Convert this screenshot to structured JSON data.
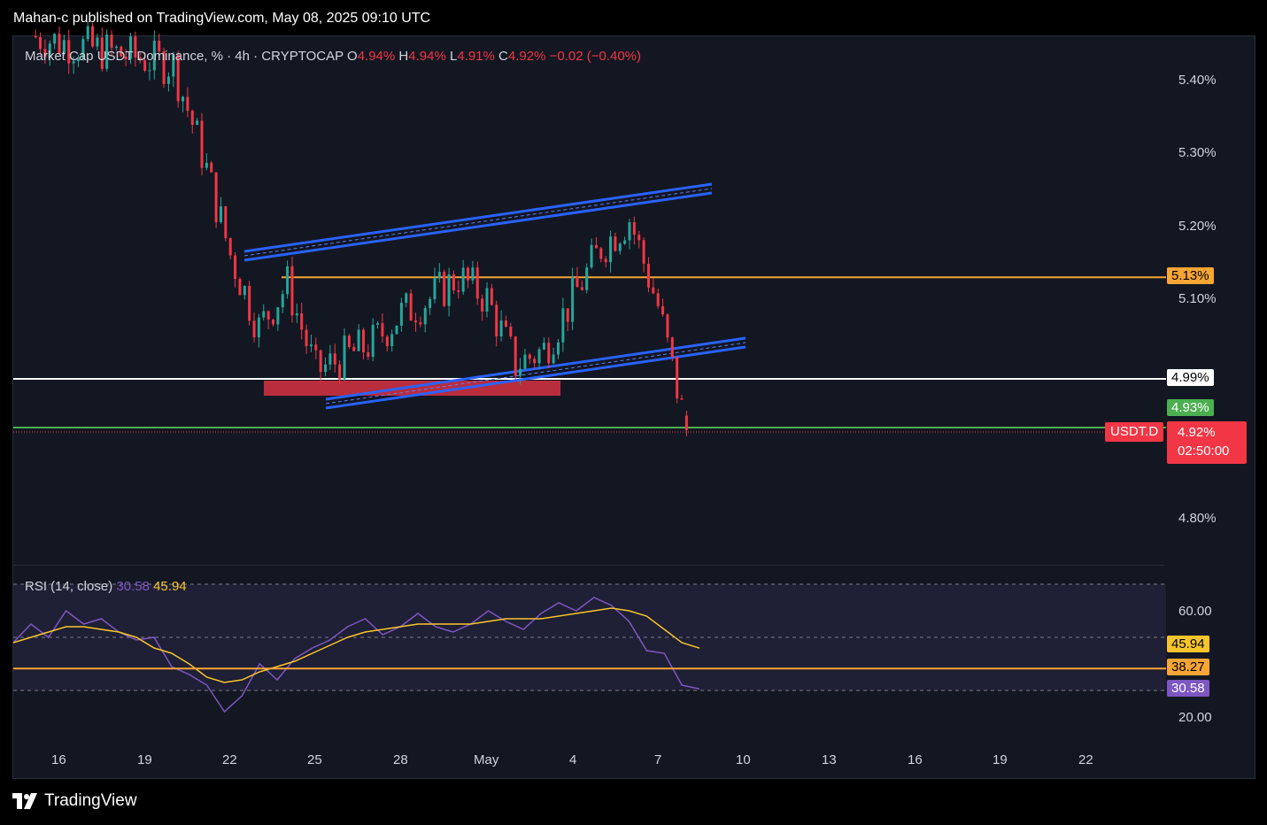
{
  "header": {
    "text": "Mahan-c published on TradingView.com, May 08, 2025 09:10 UTC"
  },
  "footer": {
    "brand": "TradingView"
  },
  "legend": {
    "title": "Market Cap USDT Dominance, % · 4h · CRYPTOCAP",
    "o_label": "O",
    "o_value": "4.94%",
    "h_label": "H",
    "h_value": "4.94%",
    "l_label": "L",
    "l_value": "4.91%",
    "c_label": "C",
    "c_value": "4.92%",
    "change": "−0.02 (−0.40%)"
  },
  "rsi_legend": {
    "label": "RSI (14, close)",
    "rsi_value": "30.58",
    "ma_value": "45.94"
  },
  "price_axis": [
    "5.40%",
    "5.30%",
    "5.20%",
    "5.10%",
    "4.80%"
  ],
  "rsi_axis": [
    "60.00",
    "20.00"
  ],
  "time_axis": [
    "16",
    "19",
    "22",
    "25",
    "28",
    "May",
    "4",
    "7",
    "10",
    "13",
    "16",
    "19",
    "22"
  ],
  "price_badges": {
    "orange": "5.13%",
    "white": "4.99%",
    "green": "4.93%",
    "symbol": "USDT.D",
    "current": "4.92%",
    "countdown": "02:50:00"
  },
  "rsi_badges": {
    "ma": "45.94",
    "level": "38.27",
    "rsi": "30.58"
  },
  "colors": {
    "up": "#26a69a",
    "down": "#f23645",
    "channel": "#2962ff",
    "orange": "#f7a535",
    "rsi": "#7e57c2",
    "rsi_ma": "#f7c52b",
    "green": "#4caf50"
  },
  "chart_data": {
    "type": "candlestick",
    "symbol": "USDT.D",
    "timeframe": "4h",
    "price_range": [
      4.745,
      5.465
    ],
    "ohlc_last": {
      "open": 4.94,
      "high": 4.94,
      "low": 4.91,
      "close": 4.92
    },
    "close_path": [
      {
        "t": "Apr 15",
        "close": 5.46
      },
      {
        "t": "Apr 20",
        "close": 5.42
      },
      {
        "t": "Apr 21",
        "close": 5.3
      },
      {
        "t": "Apr 22",
        "close": 5.16
      },
      {
        "t": "Apr 23",
        "close": 5.06
      },
      {
        "t": "Apr 24",
        "close": 5.12
      },
      {
        "t": "Apr 25",
        "close": 5.0
      },
      {
        "t": "Apr 27",
        "close": 5.04
      },
      {
        "t": "Apr 28",
        "close": 5.08
      },
      {
        "t": "Apr 29",
        "close": 5.1
      },
      {
        "t": "Apr 30",
        "close": 5.13
      },
      {
        "t": "May 1",
        "close": 5.1
      },
      {
        "t": "May 2",
        "close": 5.01
      },
      {
        "t": "May 3",
        "close": 5.03
      },
      {
        "t": "May 4",
        "close": 5.1
      },
      {
        "t": "May 5",
        "close": 5.17
      },
      {
        "t": "May 6",
        "close": 5.21
      },
      {
        "t": "May 7",
        "close": 5.09
      },
      {
        "t": "May 8",
        "close": 4.92
      }
    ],
    "horizontal_levels": [
      5.13,
      4.99,
      4.93
    ],
    "rsi": {
      "period": 14,
      "value": 30.58,
      "ma": 45.94,
      "level": 38.27,
      "bands": [
        70,
        50,
        30
      ],
      "series": [
        48,
        55,
        50,
        60,
        55,
        57,
        52,
        49,
        50,
        39,
        36,
        32,
        22,
        28,
        40,
        34,
        42,
        46,
        49,
        54,
        57,
        51,
        54,
        59,
        54,
        52,
        55,
        60,
        56,
        53,
        59,
        63,
        60,
        65,
        62,
        56,
        45,
        44,
        32,
        30.58
      ],
      "ma_series": [
        48,
        50,
        52,
        54,
        54,
        53,
        52,
        50,
        46,
        44,
        40,
        35,
        33,
        34,
        37,
        39,
        41,
        44,
        47,
        50,
        52,
        53,
        54,
        55,
        55,
        55,
        55,
        56,
        57,
        57,
        57,
        58,
        59,
        60,
        61,
        60,
        58,
        53,
        48,
        45.94
      ]
    }
  }
}
